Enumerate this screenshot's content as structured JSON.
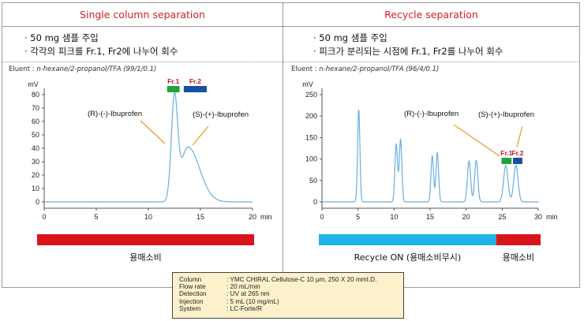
{
  "left": {
    "title": "Single column separation",
    "bullets": [
      "· 50 mg 샘플 주입",
      "· 각각의 피크를 Fr.1, Fr2에 나누어 회수"
    ],
    "eluent_label": "Eluent : ",
    "eluent_value": "n-hexane/2-propanol/TFA (99/1/0.1)",
    "bar_label": "용매소비",
    "annotations": {
      "r_label": "(R)-(-)-Ibuprofen",
      "s_label": "(S)-(+)-Ibuprofen",
      "fr1": "Fr.1",
      "fr2": "Fr.2"
    }
  },
  "right": {
    "title": "Recycle separation",
    "bullets": [
      "· 50 mg 샘플 주입",
      "· 피크가 분리되는 시점에 Fr.1, Fr2를 나누어 회수"
    ],
    "eluent_label": "Eluent : ",
    "eluent_value": "n-hexane/2-propanol/TFA (96/4/0.1)",
    "bar_label_recycle": "Recycle ON (용매소비무시)",
    "bar_label_consume": "용매소비",
    "annotations": {
      "r_label": "(R)-(-)-Ibuprofen",
      "s_label": "(S)-(+)-Ibuprofen",
      "fr1": "Fr.1",
      "fr2": "Fr.2"
    }
  },
  "conditions": [
    {
      "key": "Column",
      "value": ": YMC CHIRAL Cellulose-C 10 μm, 250 X 20 mmI.D."
    },
    {
      "key": "Flow rate",
      "value": ": 20 mL/min"
    },
    {
      "key": "Detection",
      "value": ": UV at 265 nm"
    },
    {
      "key": "Injection",
      "value": ": 5 mL (10 mg/mL)"
    },
    {
      "key": "System",
      "value": ": LC-Forte/R"
    }
  ],
  "colors": {
    "title_red": "#d0202a",
    "trace": "#6aaee0",
    "bar_red": "#d9141c",
    "bar_cyan": "#1fb3e8",
    "fr1_green": "#22a33a",
    "fr2_blue": "#1650a0",
    "annotation_line": "#e8a030"
  },
  "chart_data": [
    {
      "type": "line",
      "title": "Single column separation",
      "xlabel": "min",
      "ylabel": "mV",
      "xlim": [
        0,
        20
      ],
      "ylim": [
        0,
        80
      ],
      "xticks": [
        0,
        5,
        10,
        15,
        20
      ],
      "yticks": [
        0,
        10,
        20,
        30,
        40,
        50,
        60,
        70,
        80
      ],
      "grid": false,
      "peaks": [
        {
          "name": "(R)-(-)-Ibuprofen",
          "t": 12.5,
          "h": 74,
          "w": 0.3
        },
        {
          "name": "(S)-(+)-Ibuprofen",
          "t": 13.8,
          "h": 41,
          "w": 0.7
        }
      ],
      "fractions": [
        {
          "name": "Fr.1",
          "start": 11.8,
          "end": 13.0,
          "color": "#22a33a"
        },
        {
          "name": "Fr.2",
          "start": 13.4,
          "end": 15.6,
          "color": "#1650a0"
        }
      ],
      "solvent_bar": [
        {
          "label": "용매소비",
          "start": 0,
          "end": 20,
          "color": "#d9141c"
        }
      ]
    },
    {
      "type": "line",
      "title": "Recycle separation",
      "xlabel": "min",
      "ylabel": "mV",
      "xlim": [
        0,
        30
      ],
      "ylim": [
        0,
        250
      ],
      "xticks": [
        0,
        5,
        10,
        15,
        20,
        25,
        30
      ],
      "yticks": [
        0,
        50,
        100,
        150,
        200,
        250
      ],
      "grid": false,
      "peaks": [
        {
          "t": 5.1,
          "h": 215,
          "w": 0.16
        },
        {
          "t": 10.3,
          "h": 135,
          "w": 0.18
        },
        {
          "t": 10.9,
          "h": 145,
          "w": 0.18
        },
        {
          "t": 15.3,
          "h": 108,
          "w": 0.18
        },
        {
          "t": 16.0,
          "h": 115,
          "w": 0.18
        },
        {
          "t": 20.4,
          "h": 95,
          "w": 0.22
        },
        {
          "t": 21.4,
          "h": 97,
          "w": 0.22
        },
        {
          "name": "(R)-(-)-Ibuprofen",
          "t": 25.5,
          "h": 85,
          "w": 0.3
        },
        {
          "name": "(S)-(+)-Ibuprofen",
          "t": 26.9,
          "h": 85,
          "w": 0.3
        }
      ],
      "fractions": [
        {
          "name": "Fr.1",
          "start": 24.9,
          "end": 26.3,
          "color": "#22a33a"
        },
        {
          "name": "Fr.2",
          "start": 26.5,
          "end": 27.8,
          "color": "#1650a0"
        }
      ],
      "solvent_bar": [
        {
          "label": "Recycle ON (용매소비무시)",
          "start": 0,
          "end": 24.0,
          "color": "#1fb3e8"
        },
        {
          "label": "용매소비",
          "start": 24.0,
          "end": 30,
          "color": "#d9141c"
        }
      ]
    }
  ]
}
